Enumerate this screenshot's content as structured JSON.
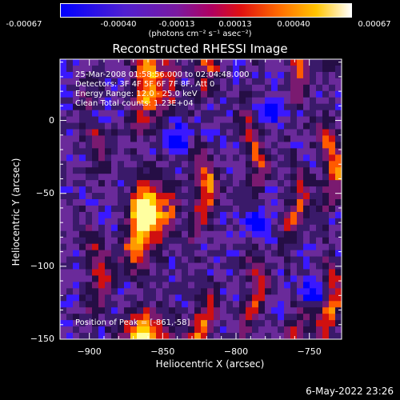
{
  "colorbar": {
    "tick_labels": [
      "-0.00067",
      "-0.00040",
      "-0.00013",
      "0.00013",
      "0.00040",
      "0.00067"
    ],
    "units": "(photons cm⁻² s⁻¹ asec⁻²)"
  },
  "title": "Reconstructed RHESSI Image",
  "annotations": {
    "time_range": "25-Mar-2008 01:58:56.000 to 02:04:48.000",
    "detectors": "Detectors: 3F 4F 5F 6F 7F 8F, Att 0",
    "energy": "Energy Range: 12.0 - 25.0 keV",
    "clean": "Clean    Total counts: 1.23E+04",
    "peak": "Position of Peak = [-861,-58]"
  },
  "axes": {
    "xlabel": "Heliocentric X (arcsec)",
    "ylabel": "Heliocentric Y (arcsec)",
    "x_ticks": [
      "-900",
      "-850",
      "-800",
      "-750"
    ],
    "y_ticks": [
      "0",
      "-50",
      "-100",
      "-150"
    ],
    "xlim": [
      -920,
      -728
    ],
    "ylim": [
      -150,
      42
    ]
  },
  "colors": {
    "colormap": [
      "#0000ff",
      "#3a18ff",
      "#6a2a9a",
      "#3a1a6a",
      "#250e45",
      "#7a1a70",
      "#d01010",
      "#ff5a00",
      "#ff9a00",
      "#ffd000",
      "#ffffa0"
    ]
  },
  "datestamp": "6-May-2022 23:26"
}
